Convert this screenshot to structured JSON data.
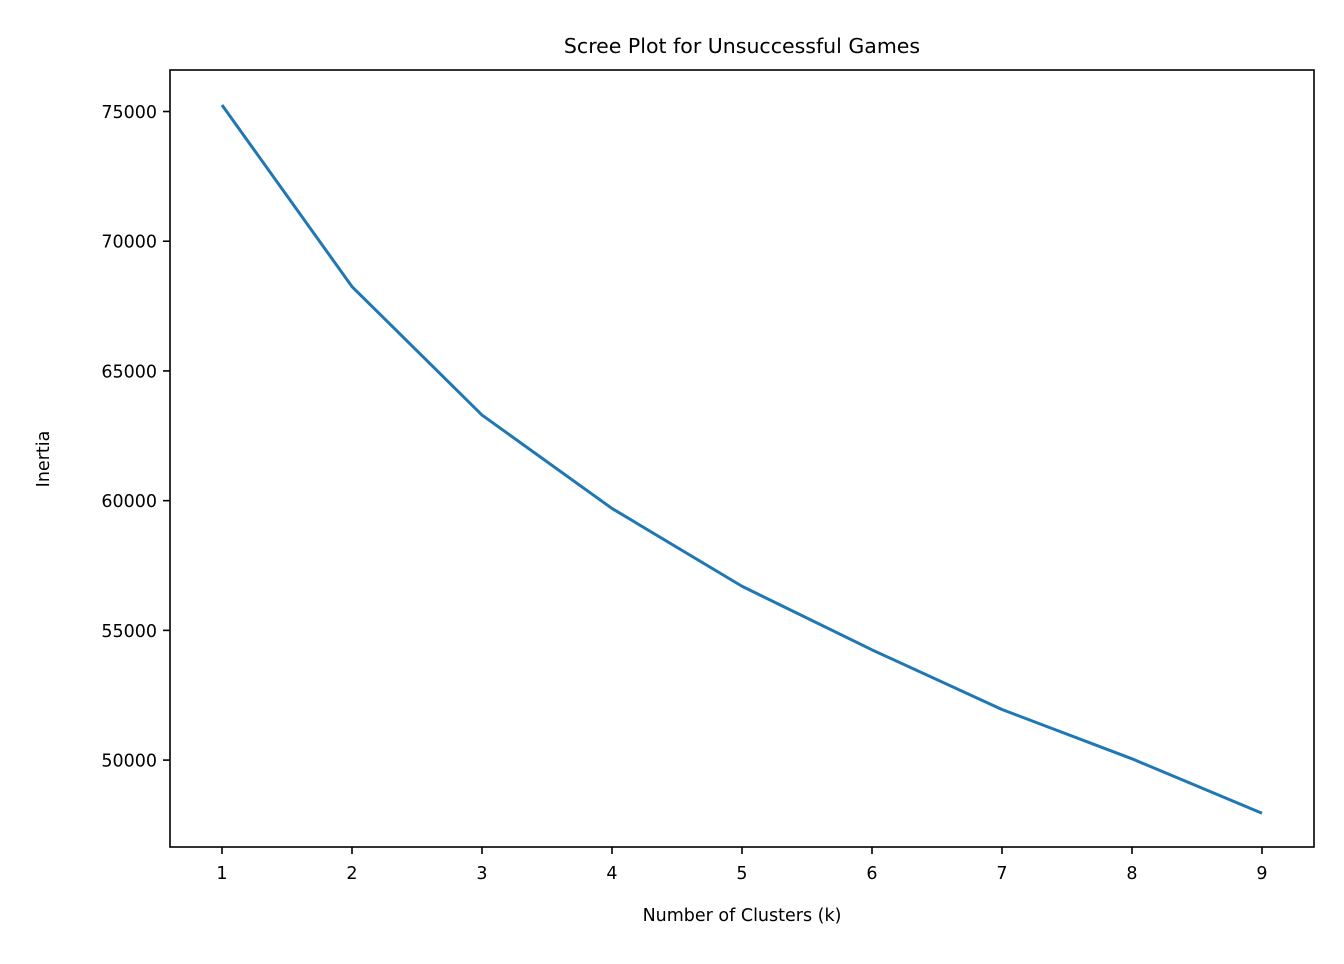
{
  "chart_data": {
    "type": "line",
    "title": "Scree Plot for Unsuccessful Games",
    "xlabel": "Number of Clusters (k)",
    "ylabel": "Inertia",
    "x": [
      1,
      2,
      3,
      4,
      5,
      6,
      7,
      8,
      9
    ],
    "xticks": [
      1,
      2,
      3,
      4,
      5,
      6,
      7,
      8,
      9
    ],
    "xlim": [
      0.6,
      9.4
    ],
    "yticks": [
      50000,
      55000,
      60000,
      65000,
      70000,
      75000
    ],
    "ylim": [
      46650,
      76600
    ],
    "grid": false,
    "legend": "none",
    "series": [
      {
        "values": [
          75250,
          68250,
          63300,
          59700,
          56700,
          54250,
          51950,
          50050,
          47950
        ],
        "color": "#1f77b4"
      }
    ]
  }
}
